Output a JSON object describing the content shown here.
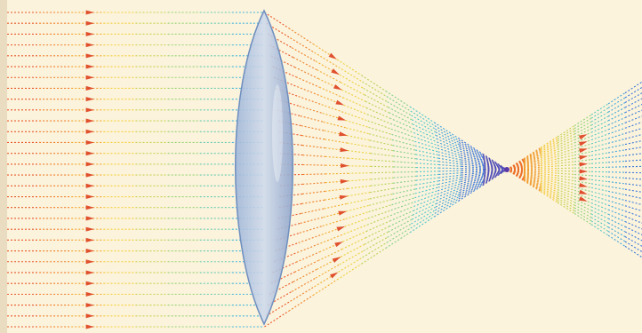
{
  "diagram": {
    "description_visible_text": "",
    "background_color": "#fbf3dc",
    "ray_color_gradient": [
      "#e8452a",
      "#f08a2a",
      "#f5d23a",
      "#9fd468",
      "#4cc7d6",
      "#3a7fe0",
      "#5b3aa8"
    ],
    "arrow_color": "#e0502e",
    "lens_color": "#8fa9cf",
    "lens_stroke_color": "#6f8fbf",
    "components": [
      "incoming-parallel-rays",
      "convex-lens",
      "converging-rays",
      "focal-point",
      "diverging-rays"
    ]
  }
}
